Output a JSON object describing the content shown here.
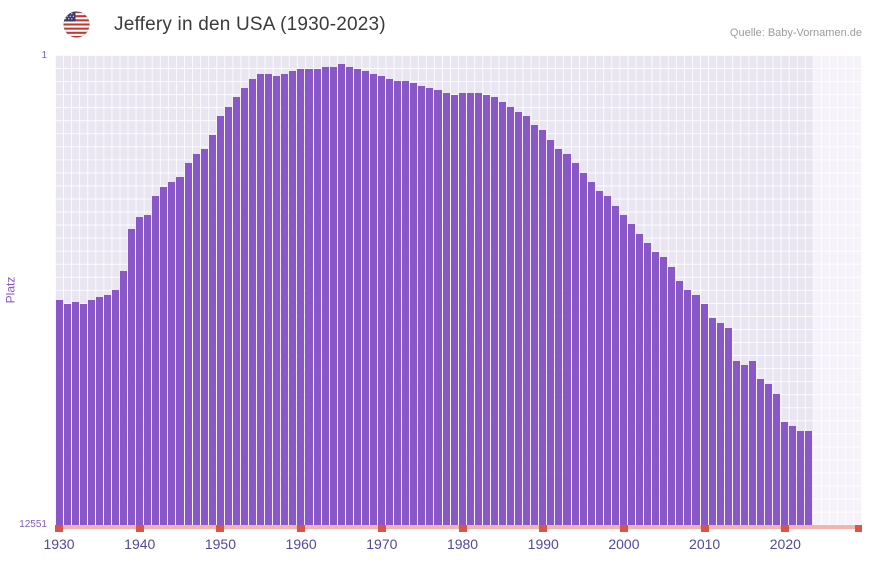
{
  "header": {
    "title": "Jeffery in den USA (1930-2023)",
    "source": "Quelle: Baby-Vornamen.de",
    "flag_icon": "us-flag-icon"
  },
  "chart_data": {
    "type": "bar",
    "title": "Jeffery in den USA (1930-2023)",
    "xlabel": "",
    "ylabel": "Platz",
    "y_axis": {
      "top_label": "1",
      "bottom_label": "12551",
      "min": 1,
      "max": 12551,
      "inverted": true
    },
    "x_ticks": [
      1930,
      1940,
      1950,
      1960,
      1970,
      1980,
      1990,
      2000,
      2010,
      2020
    ],
    "x_span": {
      "start": 1929.5,
      "end": 2029.5
    },
    "grid": true,
    "legend": false,
    "bar_color": "#8a57c9",
    "years": [
      1930,
      1931,
      1932,
      1933,
      1934,
      1935,
      1936,
      1937,
      1938,
      1939,
      1940,
      1941,
      1942,
      1943,
      1944,
      1945,
      1946,
      1947,
      1948,
      1949,
      1950,
      1951,
      1952,
      1953,
      1954,
      1955,
      1956,
      1957,
      1958,
      1959,
      1960,
      1961,
      1962,
      1963,
      1964,
      1965,
      1966,
      1967,
      1968,
      1969,
      1970,
      1971,
      1972,
      1973,
      1974,
      1975,
      1976,
      1977,
      1978,
      1979,
      1980,
      1981,
      1982,
      1983,
      1984,
      1985,
      1986,
      1987,
      1988,
      1989,
      1990,
      1991,
      1992,
      1993,
      1994,
      1995,
      1996,
      1997,
      1998,
      1999,
      2000,
      2001,
      2002,
      2003,
      2004,
      2005,
      2006,
      2007,
      2008,
      2009,
      2010,
      2011,
      2012,
      2013,
      2014,
      2015,
      2016,
      2017,
      2018,
      2019,
      2020,
      2021,
      2022,
      2023
    ],
    "ranks": [
      6530,
      6650,
      6590,
      6650,
      6530,
      6460,
      6400,
      6280,
      5770,
      4650,
      4330,
      4270,
      3770,
      3520,
      3390,
      3260,
      2890,
      2640,
      2510,
      2140,
      1630,
      1380,
      1130,
      880,
      630,
      500,
      500,
      570,
      500,
      440,
      380,
      380,
      380,
      320,
      320,
      250,
      320,
      380,
      440,
      500,
      570,
      630,
      690,
      690,
      750,
      820,
      880,
      940,
      1010,
      1070,
      1010,
      1010,
      1010,
      1070,
      1130,
      1260,
      1380,
      1510,
      1630,
      1880,
      2010,
      2260,
      2510,
      2640,
      2890,
      3140,
      3390,
      3640,
      3770,
      4020,
      4270,
      4520,
      4770,
      5020,
      5270,
      5400,
      5650,
      6030,
      6280,
      6400,
      6650,
      7030,
      7160,
      7280,
      8160,
      8290,
      8160,
      8660,
      8790,
      9040,
      9790,
      9920,
      10040,
      10040
    ]
  },
  "colors": {
    "bar": "#8a57c9",
    "plot_background": "#e9e5f1",
    "future_band": "#f5f3fa",
    "x_axis_text": "#514a9d",
    "y_axis_text": "#7d5ec0",
    "baseline": "#f2b4ae",
    "baseline_tick": "#dc5348",
    "title_text": "#3b3b3b",
    "source_text": "#9b9ba1"
  }
}
